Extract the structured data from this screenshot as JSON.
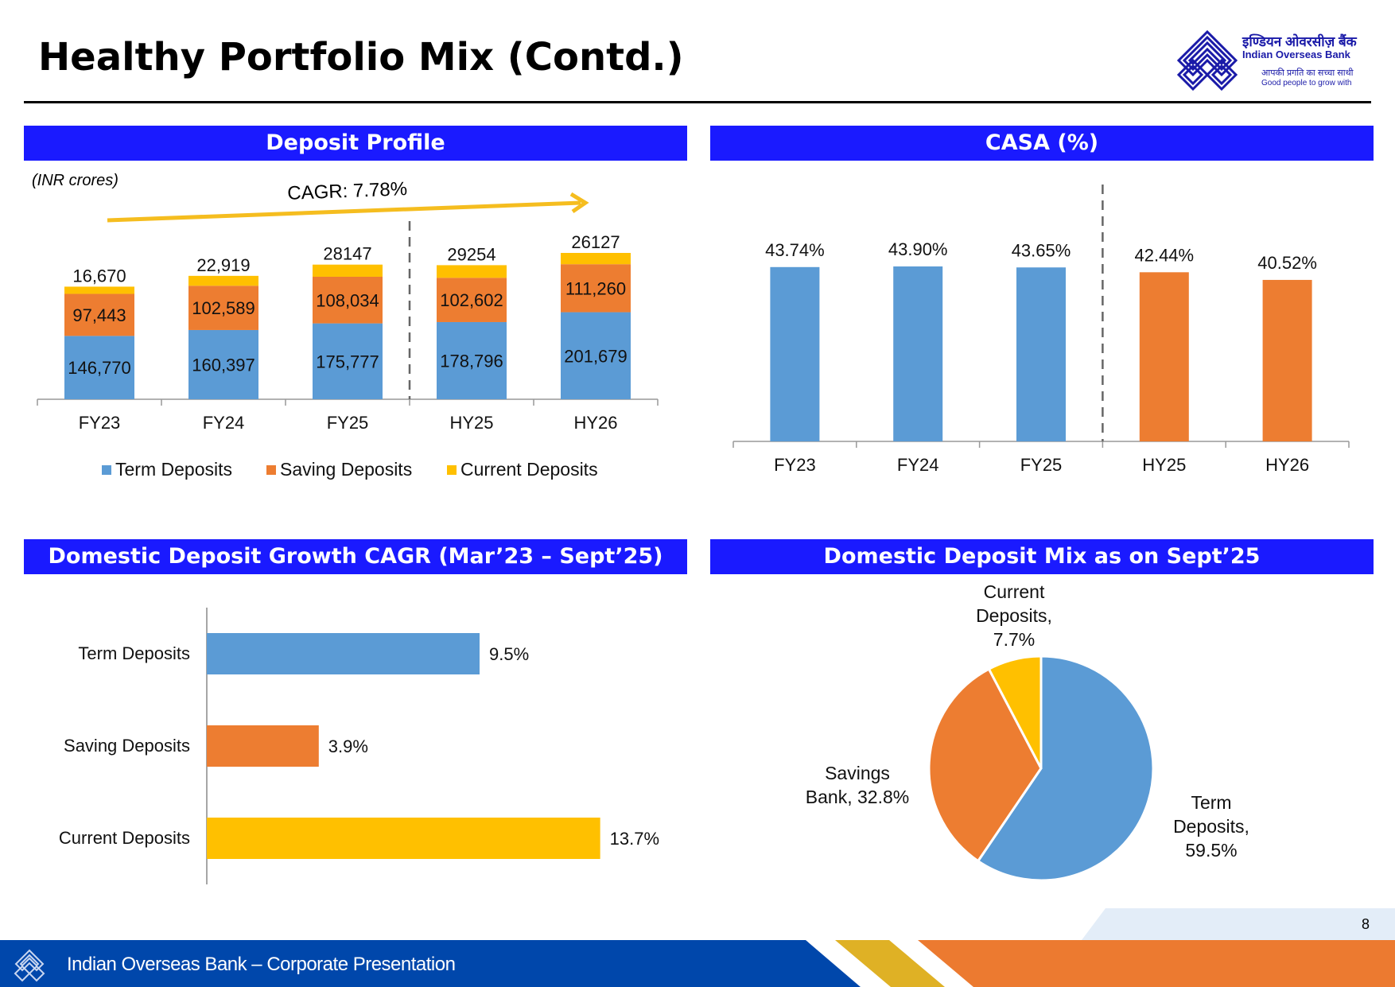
{
  "slide": {
    "title": "Healthy Portfolio Mix (Contd.)",
    "page_number": "8",
    "footer_text": "Indian Overseas Bank – Corporate Presentation",
    "colors": {
      "header_blue": "#1a1aff",
      "term_blue": "#5b9bd5",
      "saving_orange": "#ed7d31",
      "current_yellow": "#ffc000",
      "footer_blue": "#0047ab",
      "footer_gold": "#dfb125",
      "footer_orange": "#ec7a30",
      "cagr_arrow": "#f5bd1f"
    }
  },
  "logo": {
    "hindi_name": "इण्डियन ओवरसीज़ बैंक",
    "english_name": "Indian Overseas Bank",
    "hindi_tagline": "आपकी प्रगति का सच्चा साथी",
    "english_tagline": "Good people to grow with"
  },
  "panels": {
    "deposit_profile": {
      "title": "Deposit Profile",
      "unit_note": "(INR crores)",
      "cagr_label": "CAGR: 7.78%"
    },
    "casa": {
      "title": "CASA (%)"
    },
    "cagr_growth": {
      "title": "Domestic Deposit Growth CAGR (Mar’23 – Sept’25)"
    },
    "deposit_mix": {
      "title": "Domestic Deposit Mix as on Sept’25"
    }
  },
  "chart_data": [
    {
      "id": "deposit_profile",
      "type": "bar",
      "stacked": true,
      "title": "Deposit Profile",
      "ylabel": "INR crores",
      "categories": [
        "FY23",
        "FY24",
        "FY25",
        "HY25",
        "HY26"
      ],
      "series": [
        {
          "name": "Term Deposits",
          "color": "#5b9bd5",
          "values": [
            146770,
            160397,
            175777,
            178796,
            201679
          ],
          "labels": [
            "146,770",
            "160,397",
            "175,777",
            "178,796",
            "201,679"
          ]
        },
        {
          "name": "Saving Deposits",
          "color": "#ed7d31",
          "values": [
            97443,
            102589,
            108034,
            102602,
            111260
          ],
          "labels": [
            "97,443",
            "102,589",
            "108,034",
            "102,602",
            "111,260"
          ]
        },
        {
          "name": "Current Deposits",
          "color": "#ffc000",
          "values": [
            16670,
            22919,
            28147,
            29254,
            26127
          ],
          "labels": [
            "16,670",
            "22,919",
            "28147",
            "29254",
            "26127"
          ]
        }
      ],
      "annotation": "CAGR: 7.78%",
      "divider_after_category": "FY25",
      "legend": "bottom",
      "ylim": [
        0,
        400000
      ],
      "grid": false
    },
    {
      "id": "casa",
      "type": "bar",
      "title": "CASA (%)",
      "categories": [
        "FY23",
        "FY24",
        "FY25",
        "HY25",
        "HY26"
      ],
      "values": [
        43.74,
        43.9,
        43.65,
        42.44,
        40.52
      ],
      "labels": [
        "43.74%",
        "43.90%",
        "43.65%",
        "42.44%",
        "40.52%"
      ],
      "colors": [
        "#5b9bd5",
        "#5b9bd5",
        "#5b9bd5",
        "#ed7d31",
        "#ed7d31"
      ],
      "divider_after_category": "FY25",
      "ylim": [
        0,
        55
      ],
      "grid": false
    },
    {
      "id": "cagr_growth",
      "type": "bar",
      "orientation": "horizontal",
      "title": "Domestic Deposit Growth CAGR (Mar’23 – Sept’25)",
      "categories": [
        "Term Deposits",
        "Saving Deposits",
        "Current Deposits"
      ],
      "values": [
        9.5,
        3.9,
        13.7
      ],
      "labels": [
        "9.5%",
        "3.9%",
        "13.7%"
      ],
      "colors": [
        "#5b9bd5",
        "#ed7d31",
        "#ffc000"
      ],
      "xlim": [
        0,
        16
      ],
      "grid": false
    },
    {
      "id": "deposit_mix",
      "type": "pie",
      "title": "Domestic Deposit Mix as on Sept’25",
      "slices": [
        {
          "name": "Term Deposits",
          "value": 59.5,
          "label_lines": [
            "Term",
            "Deposits,",
            "59.5%"
          ],
          "color": "#5b9bd5"
        },
        {
          "name": "Savings Bank",
          "value": 32.8,
          "label_lines": [
            "Savings",
            "Bank, 32.8%"
          ],
          "color": "#ed7d31"
        },
        {
          "name": "Current Deposits",
          "value": 7.7,
          "label_lines": [
            "Current",
            "Deposits,",
            "7.7%"
          ],
          "color": "#ffc000"
        }
      ]
    }
  ]
}
